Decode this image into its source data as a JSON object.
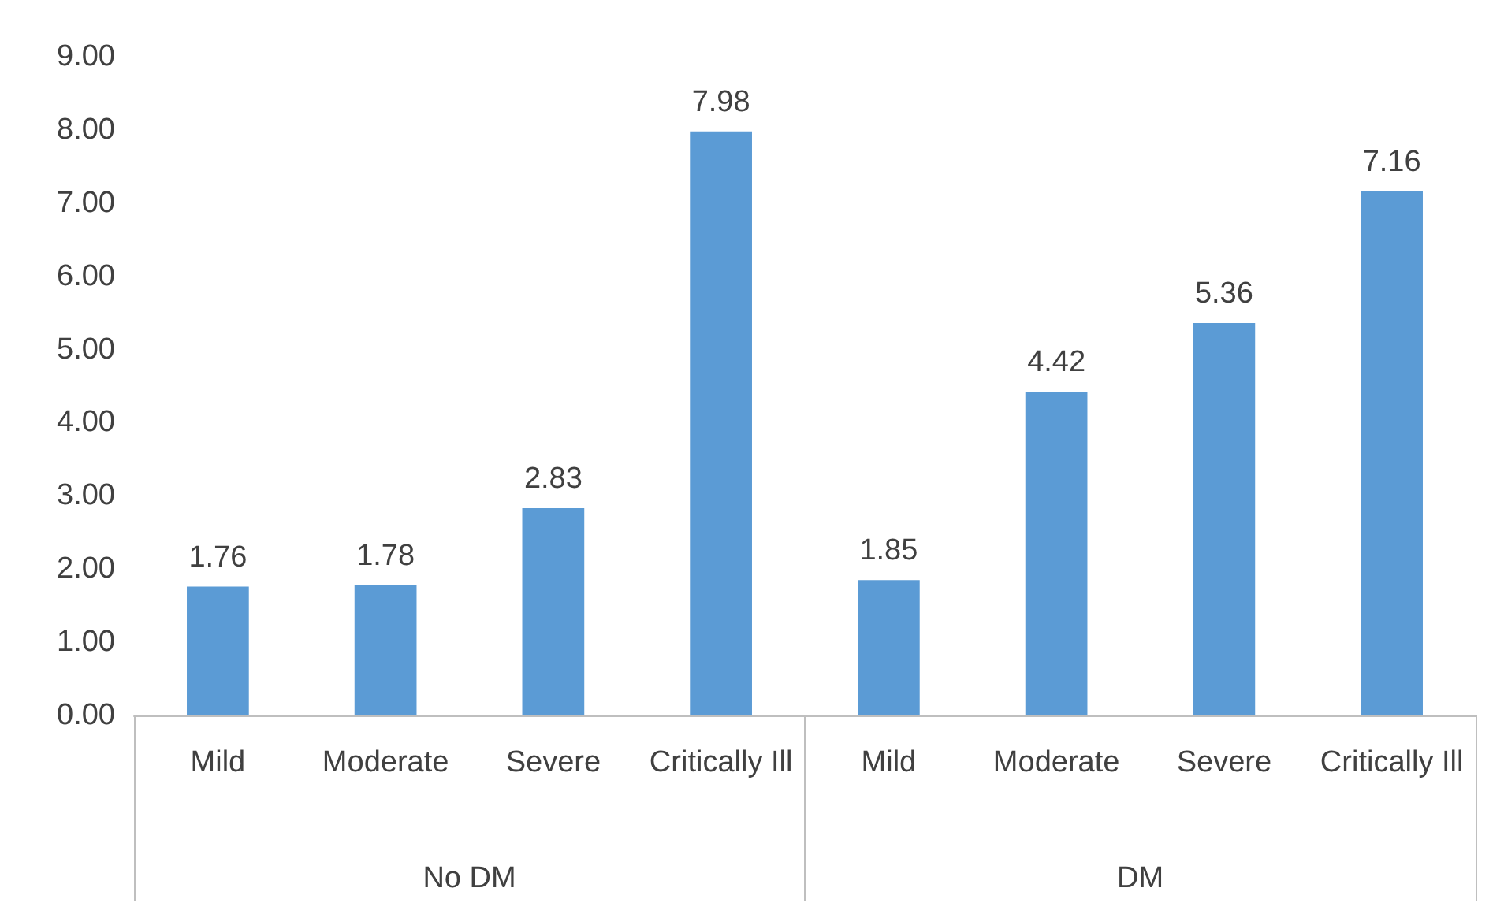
{
  "chart_data": {
    "type": "bar",
    "categories": [
      "Mild",
      "Moderate",
      "Severe",
      "Critically Ill",
      "Mild",
      "Moderate",
      "Severe",
      "Critically Ill"
    ],
    "values": [
      1.76,
      1.78,
      2.83,
      7.98,
      1.85,
      4.42,
      5.36,
      7.16
    ],
    "color": "#5b9bd5",
    "data_labels": true,
    "grid": false,
    "ylim": [
      0,
      9
    ],
    "yticks": [
      {
        "value": 0,
        "label": "0.00"
      },
      {
        "value": 1,
        "label": "1.00"
      },
      {
        "value": 2,
        "label": "2.00"
      },
      {
        "value": 3,
        "label": "3.00"
      },
      {
        "value": 4,
        "label": "4.00"
      },
      {
        "value": 5,
        "label": "5.00"
      },
      {
        "value": 6,
        "label": "6.00"
      },
      {
        "value": 7,
        "label": "7.00"
      },
      {
        "value": 8,
        "label": "8.00"
      },
      {
        "value": 9,
        "label": "9.00"
      }
    ],
    "annotations": [
      "No DM",
      "DM"
    ]
  }
}
